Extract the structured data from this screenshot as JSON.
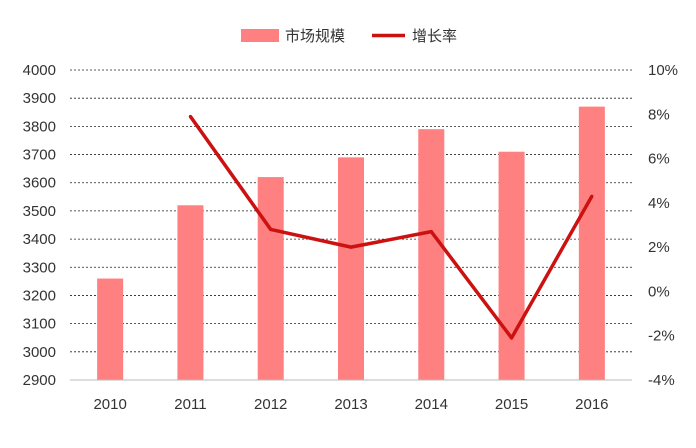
{
  "chart_data": {
    "type": "bar",
    "categories": [
      "2010",
      "2011",
      "2012",
      "2013",
      "2014",
      "2015",
      "2016"
    ],
    "series": [
      {
        "name": "市场规模",
        "type": "bar",
        "axis": "left",
        "color": "#ff8080",
        "values": [
          3260,
          3520,
          3620,
          3690,
          3790,
          3710,
          3870
        ]
      },
      {
        "name": "增长率",
        "type": "line",
        "axis": "right",
        "color": "#cc1111",
        "values": [
          null,
          7.9,
          2.8,
          2.0,
          2.7,
          -2.1,
          4.3
        ]
      }
    ],
    "ylim_left": [
      2900,
      4000
    ],
    "yticks_left": [
      2900,
      3000,
      3100,
      3200,
      3300,
      3400,
      3500,
      3600,
      3700,
      3800,
      3900,
      4000
    ],
    "ylim_right": [
      -4,
      10
    ],
    "yticks_right": [
      "-4%",
      "-2%",
      "0%",
      "2%",
      "4%",
      "6%",
      "8%",
      "10%"
    ],
    "grid": true,
    "legend_position": "top-center"
  }
}
